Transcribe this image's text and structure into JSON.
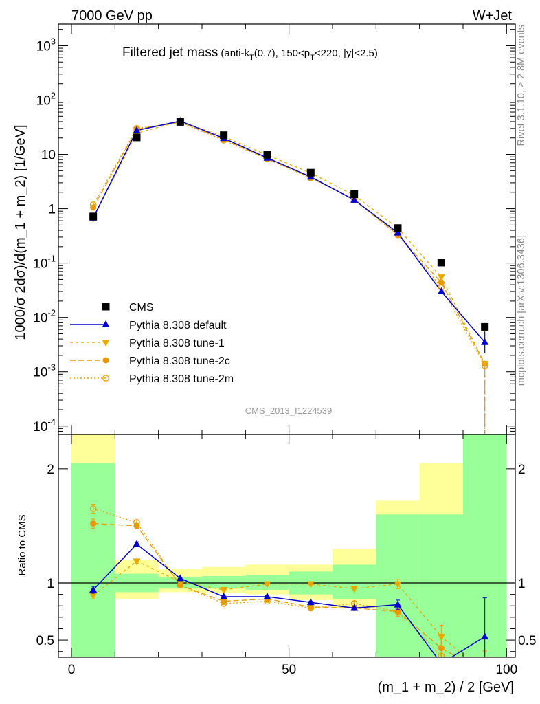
{
  "chart_data": {
    "type": "line",
    "header_left": "7000 GeV pp",
    "header_right": "W+Jet",
    "title": "Filtered jet mass",
    "title_detail": {
      "pre": "(anti-k",
      "sub1": "T",
      "mid": "(0.7), 150<p",
      "sub2": "T",
      "post": "<220, |y|<2.5)"
    },
    "analysis_id": "CMS_2013_I1224539",
    "side_label_top": "Rivet 3.1.10, ≥ 2.8M events",
    "side_label_bottom": "mcplots.cern.ch [arXiv:1306.3436]",
    "ylabel": "1000/σ 2dσ)/d(m_1 + m_2) [1/GeV]",
    "xlabel": "(m_1 + m_2) / 2 [GeV]",
    "ratio_ylabel": "Ratio to CMS",
    "yscale": "log",
    "xlim": [
      -3,
      102
    ],
    "ylim": [
      7e-05,
      2500
    ],
    "ratio_ylim": [
      0.35,
      2.3
    ],
    "x_ticks": [
      0,
      50,
      100
    ],
    "y_ticks": [
      {
        "value": 0.0001,
        "base": "10",
        "exp": "-4"
      },
      {
        "value": 0.001,
        "base": "10",
        "exp": "-3"
      },
      {
        "value": 0.01,
        "base": "10",
        "exp": "-2"
      },
      {
        "value": 0.1,
        "base": "10",
        "exp": "-1"
      },
      {
        "value": 1,
        "base": "1",
        "exp": ""
      },
      {
        "value": 10,
        "base": "10",
        "exp": ""
      },
      {
        "value": 100,
        "base": "10",
        "exp": "2"
      },
      {
        "value": 1000,
        "base": "10",
        "exp": "3"
      }
    ],
    "ratio_ticks": [
      {
        "value": 0.5,
        "label": "0.5"
      },
      {
        "value": 1,
        "label": "1"
      },
      {
        "value": 2,
        "label": "2"
      }
    ],
    "x": [
      5,
      15,
      25,
      35,
      45,
      55,
      65,
      75,
      85,
      95
    ],
    "bin_edges": [
      0,
      10,
      20,
      30,
      40,
      50,
      60,
      70,
      80,
      90,
      100
    ],
    "data": {
      "name": "CMS",
      "values": [
        0.72,
        20.5,
        39.5,
        22.5,
        9.8,
        4.6,
        1.85,
        0.44,
        0.102,
        0.0067
      ],
      "band_inner": [
        [
          0.0,
          2.05
        ],
        [
          0.92,
          1.08
        ],
        [
          0.95,
          1.05
        ],
        [
          0.95,
          1.06
        ],
        [
          0.94,
          1.07
        ],
        [
          0.9,
          1.1
        ],
        [
          0.86,
          1.16
        ],
        [
          0.0,
          1.6
        ],
        [
          0.0,
          1.6
        ],
        [
          0.0,
          2.5
        ]
      ],
      "band_outer": [
        [
          0.0,
          2.5
        ],
        [
          0.86,
          1.2
        ],
        [
          0.92,
          1.12
        ],
        [
          0.91,
          1.14
        ],
        [
          0.9,
          1.16
        ],
        [
          0.85,
          1.16
        ],
        [
          0.78,
          1.3
        ],
        [
          0.0,
          1.72
        ],
        [
          0.0,
          2.05
        ],
        [
          0.0,
          2.5
        ]
      ]
    },
    "series": [
      {
        "name": "Pythia 8.308 default",
        "color": "#0000cc",
        "dash": "",
        "marker": "triangle-up",
        "values": [
          0.68,
          27.5,
          41.0,
          19.8,
          8.6,
          3.85,
          1.45,
          0.36,
          0.03,
          0.0035
        ],
        "ratio": [
          0.94,
          1.34,
          1.04,
          0.88,
          0.88,
          0.83,
          0.78,
          0.81,
          0.295,
          0.53
        ],
        "ratio_err": [
          0.03,
          0.02,
          0.01,
          0.01,
          0.01,
          0.01,
          0.02,
          0.04,
          0.05,
          0.34
        ]
      },
      {
        "name": "Pythia 8.308 tune-1",
        "color": "#e8a800",
        "dash": "4,4",
        "marker": "triangle-down",
        "values": [
          0.66,
          24.5,
          40.5,
          21.2,
          9.7,
          4.55,
          1.76,
          0.44,
          0.055,
          0.0014
        ],
        "ratio": [
          0.89,
          1.19,
          1.01,
          0.94,
          0.99,
          0.99,
          0.95,
          0.99,
          0.53,
          0.21
        ],
        "ratio_err": [
          0.03,
          0.02,
          0.01,
          0.01,
          0.01,
          0.01,
          0.02,
          0.04,
          0.1,
          0.2
        ]
      },
      {
        "name": "Pythia 8.308 tune-2c",
        "color": "#e89800",
        "dash": "8,4",
        "marker": "circle",
        "values": [
          1.05,
          29.0,
          39.0,
          18.8,
          8.4,
          3.75,
          1.45,
          0.33,
          0.044,
          0.0014
        ],
        "ratio": [
          1.52,
          1.5,
          0.98,
          0.84,
          0.86,
          0.79,
          0.78,
          0.75,
          0.43,
          0.21
        ],
        "ratio_err": [
          0.04,
          0.02,
          0.01,
          0.01,
          0.01,
          0.01,
          0.02,
          0.04,
          0.08,
          0.2
        ]
      },
      {
        "name": "Pythia 8.308 tune-2m",
        "color": "#e8a000",
        "dash": "2,3",
        "marker": "circle-open",
        "values": [
          1.18,
          30.0,
          39.0,
          18.2,
          8.2,
          3.65,
          1.52,
          0.33,
          0.036,
          0.0013
        ],
        "ratio": [
          1.65,
          1.53,
          0.98,
          0.82,
          0.84,
          0.78,
          0.82,
          0.75,
          0.36,
          0.2
        ],
        "ratio_err": [
          0.04,
          0.02,
          0.01,
          0.01,
          0.01,
          0.01,
          0.02,
          0.04,
          0.08,
          0.2
        ]
      }
    ],
    "legend_placement": "lower-left",
    "band_colors": {
      "inner": "#99ff99",
      "outer": "#ffff99"
    }
  }
}
